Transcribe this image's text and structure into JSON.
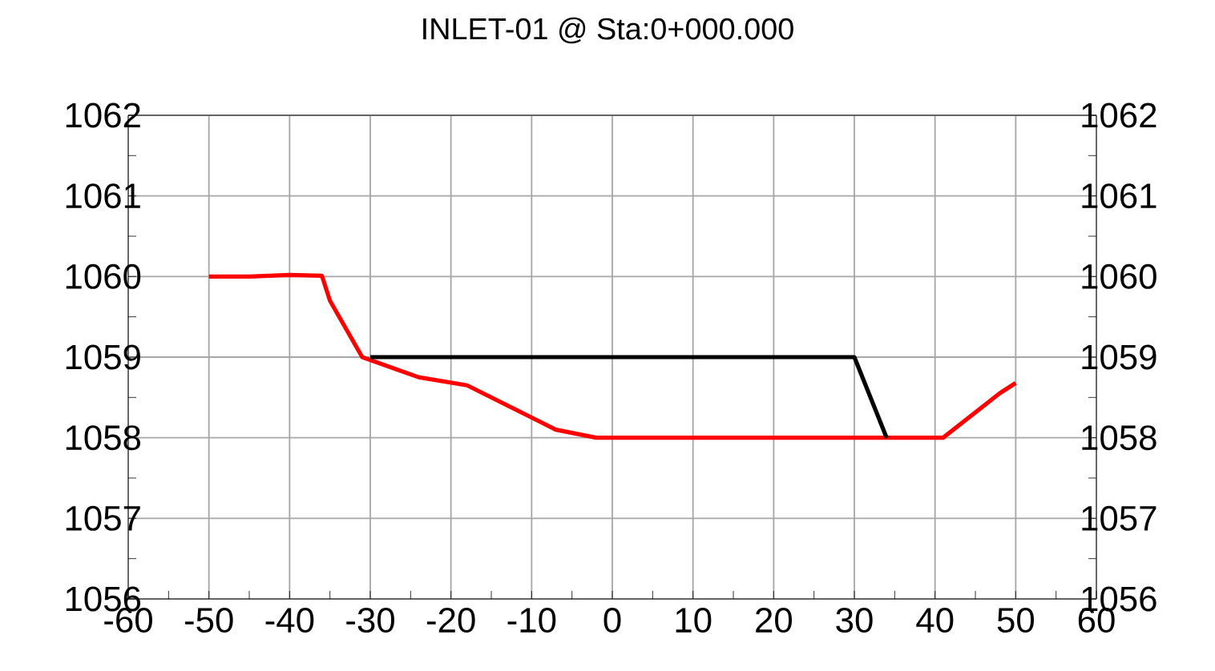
{
  "chart_data": {
    "type": "line",
    "title": "INLET-01 @ Sta:0+000.000",
    "xlim": [
      -60,
      60
    ],
    "xticks": [
      -60,
      -50,
      -40,
      -30,
      -20,
      -10,
      0,
      10,
      20,
      30,
      40,
      50,
      60
    ],
    "ylim": [
      1056,
      1062
    ],
    "yticks": [
      1056,
      1057,
      1058,
      1059,
      1060,
      1061,
      1062
    ],
    "y2lim": [
      1056,
      1062
    ],
    "y2ticks": [
      1056,
      1057,
      1058,
      1059,
      1060,
      1061,
      1062
    ],
    "grid": true,
    "series": [
      {
        "color": "#ff0000",
        "x": [
          -50,
          -45,
          -40,
          -36,
          -35,
          -31,
          -24,
          -18,
          -10,
          -7,
          -2,
          10,
          30,
          41,
          48,
          50
        ],
        "values": [
          1060,
          1060,
          1060.02,
          1060.01,
          1059.7,
          1059,
          1058.75,
          1058.65,
          1058.25,
          1058.1,
          1058,
          1058,
          1058,
          1058,
          1058.55,
          1058.68
        ]
      },
      {
        "color": "#000000",
        "x": [
          -30,
          30,
          34
        ],
        "values": [
          1059,
          1059,
          1058
        ]
      }
    ]
  }
}
